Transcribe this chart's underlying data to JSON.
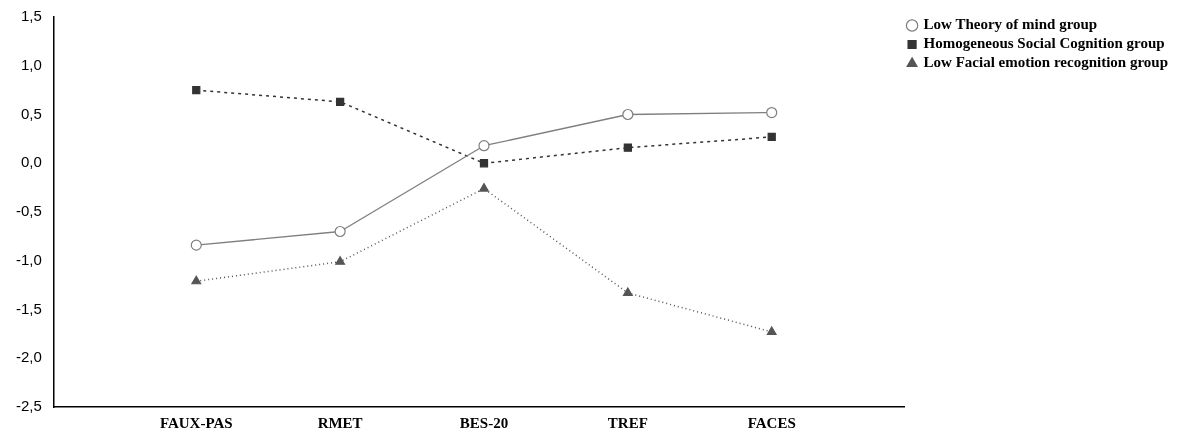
{
  "chart_data": {
    "type": "line",
    "categories": [
      "FAUX-PAS",
      "RMET",
      "BES-20",
      "TREF",
      "FACES"
    ],
    "series": [
      {
        "name": "Low Theory of mind group",
        "color": "#7f7f7f",
        "marker": "circle",
        "line_style": "solid",
        "values": [
          -0.84,
          -0.7,
          0.18,
          0.5,
          0.52
        ]
      },
      {
        "name": "Homogeneous Social Cognition group",
        "color": "#333333",
        "marker": "square",
        "line_style": "dashed",
        "values": [
          0.75,
          0.63,
          0.0,
          0.16,
          0.27
        ]
      },
      {
        "name": "Low Facial emotion recognition group",
        "color": "#555555",
        "marker": "triangle",
        "line_style": "dotted",
        "values": [
          -1.21,
          -1.01,
          -0.26,
          -1.33,
          -1.73
        ]
      }
    ],
    "ylim": [
      -2.5,
      1.5
    ],
    "yticks": [
      {
        "value": -2.5,
        "label": "-2,5"
      },
      {
        "value": -2.0,
        "label": "-2,0"
      },
      {
        "value": -1.5,
        "label": "-1,5"
      },
      {
        "value": -1.0,
        "label": "-1,0"
      },
      {
        "value": -0.5,
        "label": "-0,5"
      },
      {
        "value": 0,
        "label": "0,0"
      },
      {
        "value": 0.5,
        "label": "0,5"
      },
      {
        "value": 1.0,
        "label": "1,0"
      },
      {
        "value": 1.5,
        "label": "1,5"
      }
    ],
    "grid": false,
    "legend": "top right"
  }
}
